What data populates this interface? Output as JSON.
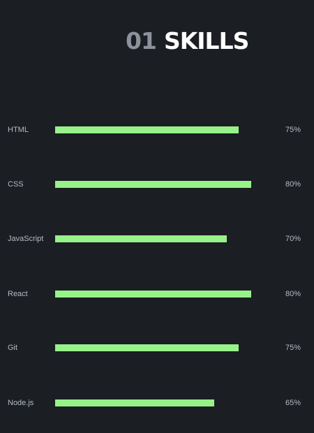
{
  "section": {
    "number": "01",
    "title": "SKILLS"
  },
  "colors": {
    "background": "#1b1e22",
    "bar": "#98f28a",
    "label": "#b6bcc5",
    "number": "#8b929c",
    "title": "#ffffff"
  },
  "skills": [
    {
      "name": "HTML",
      "percent_label": "75%",
      "level": 75
    },
    {
      "name": "CSS",
      "percent_label": "80%",
      "level": 80
    },
    {
      "name": "JavaScript",
      "percent_label": "70%",
      "level": 70
    },
    {
      "name": "React",
      "percent_label": "80%",
      "level": 80
    },
    {
      "name": "Git",
      "percent_label": "75%",
      "level": 75
    },
    {
      "name": "Node.js",
      "percent_label": "65%",
      "level": 65
    }
  ]
}
